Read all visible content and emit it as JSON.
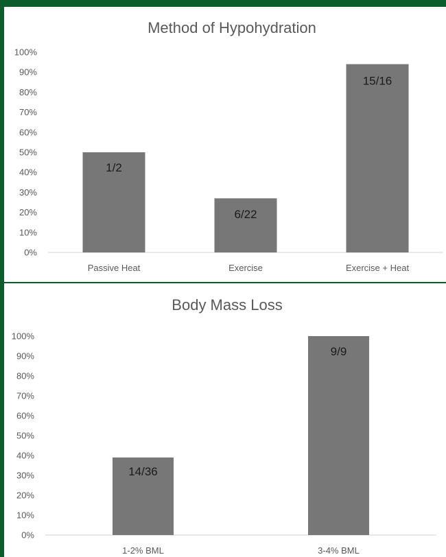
{
  "background_color": "#0b5e2b",
  "bar_color": "#777777",
  "chart_data": [
    {
      "type": "bar",
      "title": "Method of Hypohydration",
      "categories": [
        "Passive Heat",
        "Exercise",
        "Exercise + Heat"
      ],
      "values": [
        50,
        27,
        94
      ],
      "data_labels": [
        "1/2",
        "6/22",
        "15/16"
      ],
      "ylim": [
        0,
        100
      ],
      "yticks": [
        "0%",
        "10%",
        "20%",
        "30%",
        "40%",
        "50%",
        "60%",
        "70%",
        "80%",
        "90%",
        "100%"
      ],
      "xlabel": "",
      "ylabel": "",
      "grid": false,
      "legend": "none"
    },
    {
      "type": "bar",
      "title": "Body Mass Loss",
      "categories": [
        "1-2% BML",
        "3-4% BML"
      ],
      "values": [
        39,
        100
      ],
      "data_labels": [
        "14/36",
        "9/9"
      ],
      "ylim": [
        0,
        100
      ],
      "yticks": [
        "0%",
        "10%",
        "20%",
        "30%",
        "40%",
        "50%",
        "60%",
        "70%",
        "80%",
        "90%",
        "100%"
      ],
      "xlabel": "",
      "ylabel": "",
      "grid": false,
      "legend": "none"
    }
  ]
}
